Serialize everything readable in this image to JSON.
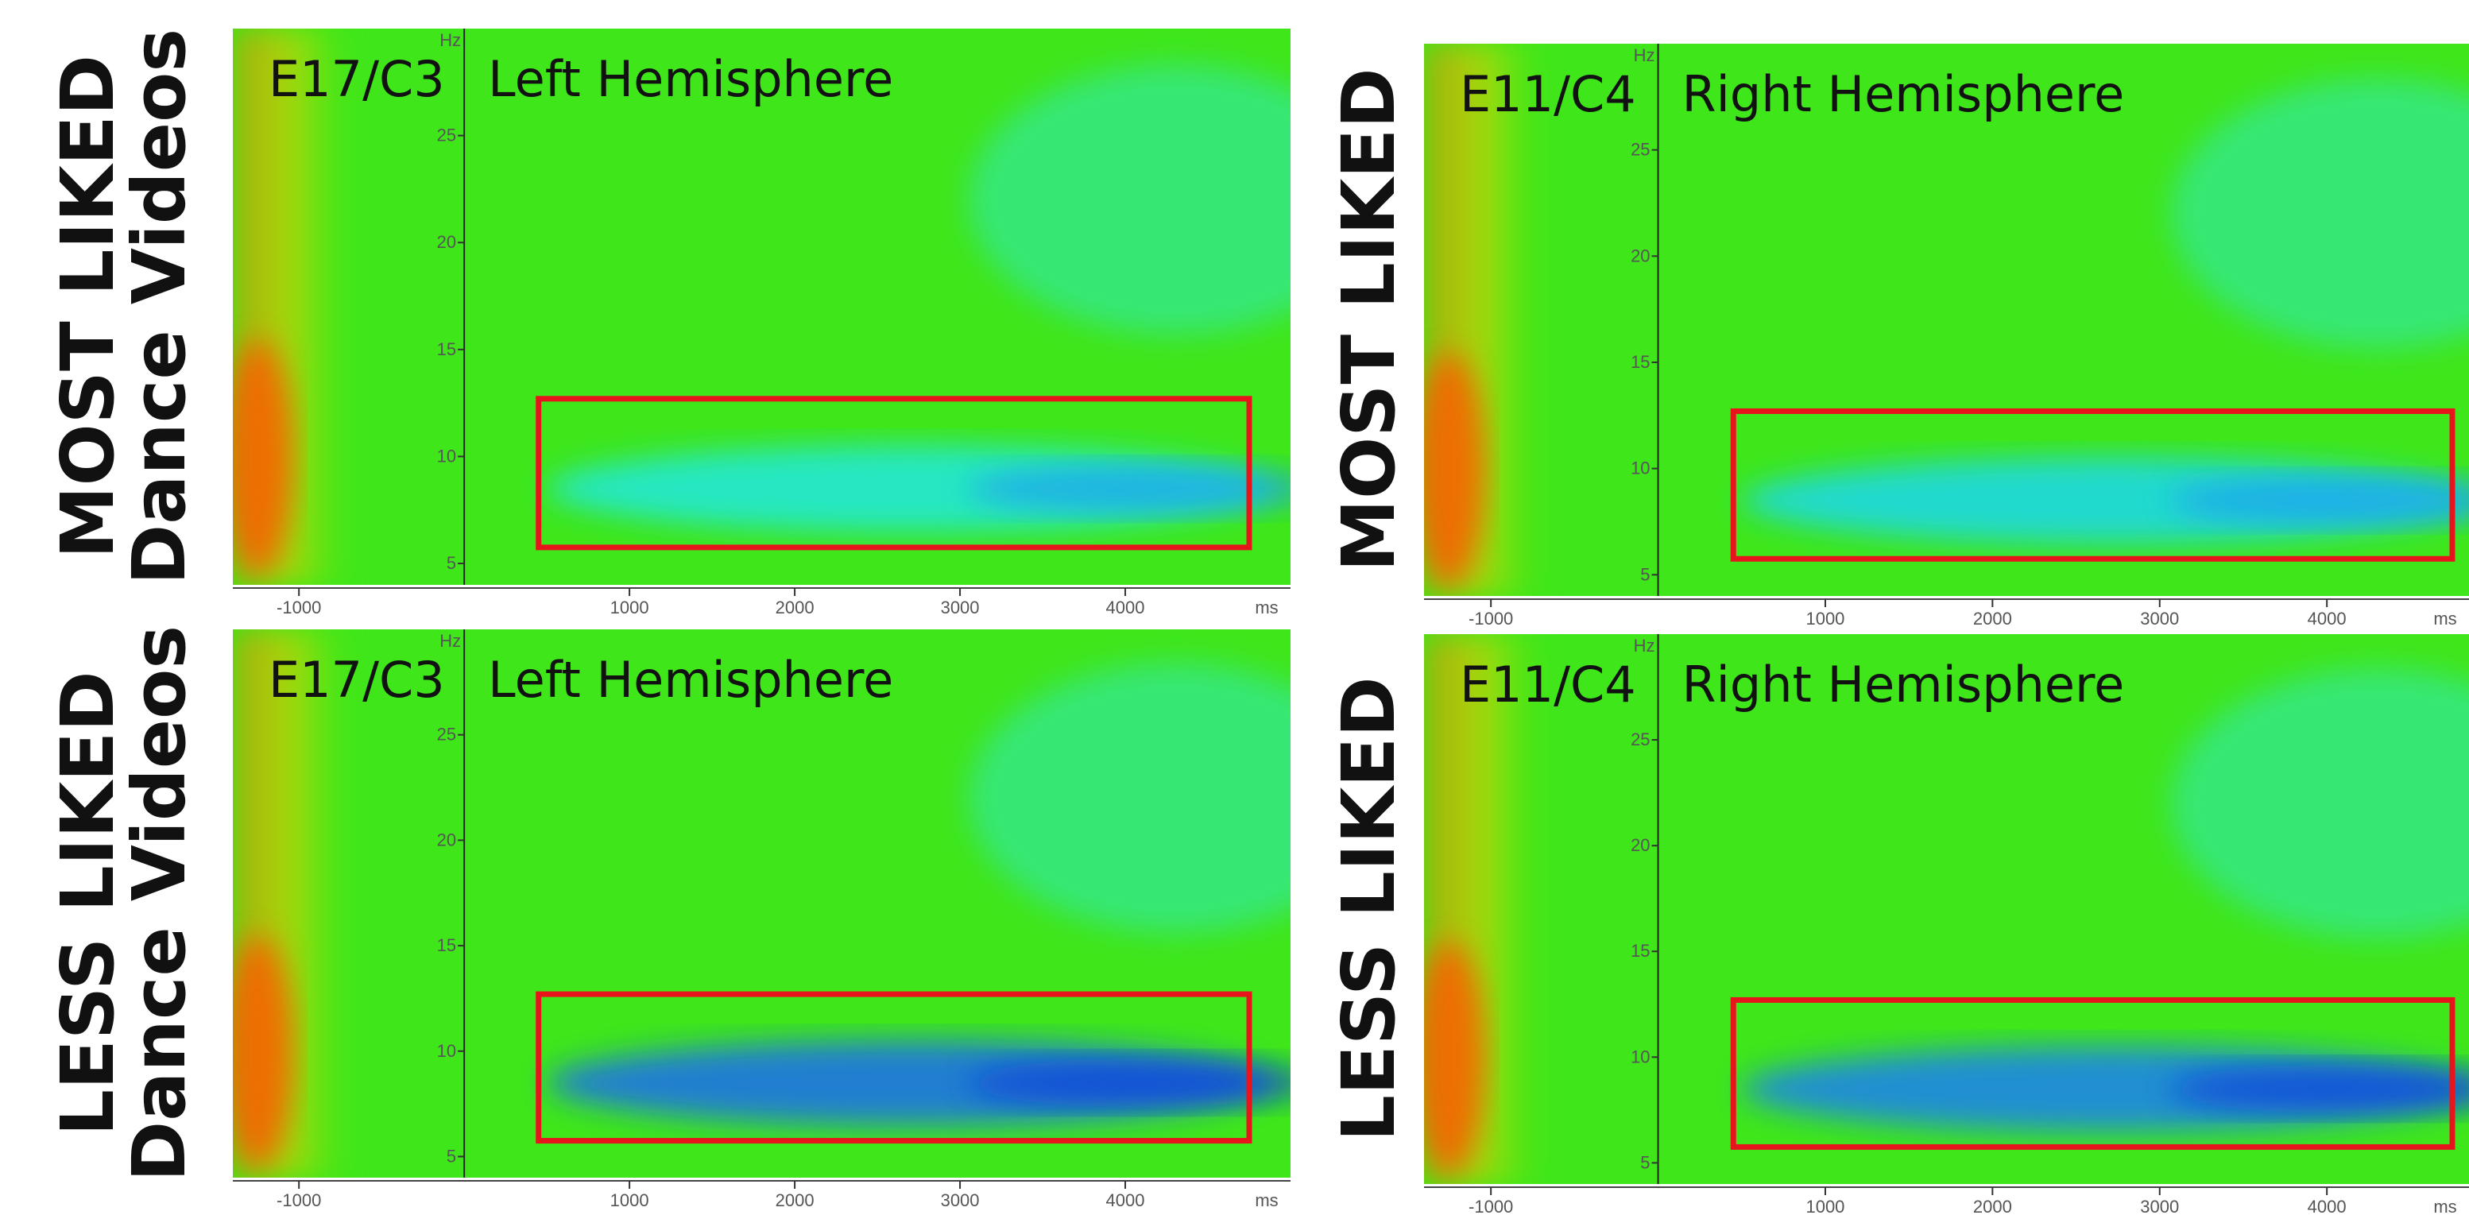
{
  "chart_data": [
    {
      "type": "heatmap",
      "electrode": "E17/C3",
      "title": "Left Hemisphere",
      "side_label": [
        "MOST LIKED",
        "Dance Videos"
      ],
      "x_label": "ms",
      "y_label": "Hz",
      "xlim": [
        -1400,
        5000
      ],
      "ylim": [
        4,
        30
      ],
      "xticks": [
        -1000,
        1000,
        2000,
        3000,
        4000
      ],
      "yticks": [
        5,
        10,
        15,
        20,
        25
      ],
      "highlight": {
        "x": [
          450,
          4750
        ],
        "y": [
          5.75,
          12.7
        ],
        "color": "#e8141c"
      }
    },
    {
      "type": "heatmap",
      "electrode": "E11/C4",
      "title": "Right Hemisphere",
      "side_label": [
        "MOST LIKED"
      ],
      "x_label": "ms",
      "y_label": "Hz",
      "xlim": [
        -1400,
        4850
      ],
      "ylim": [
        4,
        30
      ],
      "xticks": [
        -1000,
        1000,
        2000,
        3000,
        4000
      ],
      "yticks": [
        5,
        10,
        15,
        20,
        25
      ],
      "highlight": {
        "x": [
          450,
          4750
        ],
        "y": [
          5.75,
          12.7
        ],
        "color": "#e8141c"
      }
    },
    {
      "type": "heatmap",
      "electrode": "E17/C3",
      "title": "Left Hemisphere",
      "side_label": [
        "LESS LIKED",
        "Dance Videos"
      ],
      "x_label": "ms",
      "y_label": "Hz",
      "xlim": [
        -1400,
        5000
      ],
      "ylim": [
        4,
        30
      ],
      "xticks": [
        -1000,
        1000,
        2000,
        3000,
        4000
      ],
      "yticks": [
        5,
        10,
        15,
        20,
        25
      ],
      "highlight": {
        "x": [
          450,
          4750
        ],
        "y": [
          5.75,
          12.7
        ],
        "color": "#e8141c"
      }
    },
    {
      "type": "heatmap",
      "electrode": "E11/C4",
      "title": "Right Hemisphere",
      "side_label": [
        "LESS LIKED"
      ],
      "x_label": "ms",
      "y_label": "Hz",
      "xlim": [
        -1400,
        4850
      ],
      "ylim": [
        4,
        30
      ],
      "xticks": [
        -1000,
        1000,
        2000,
        3000,
        4000
      ],
      "yticks": [
        5,
        10,
        15,
        20,
        25
      ],
      "highlight": {
        "x": [
          450,
          4750
        ],
        "y": [
          5.75,
          12.7
        ],
        "color": "#e8141c"
      }
    }
  ]
}
